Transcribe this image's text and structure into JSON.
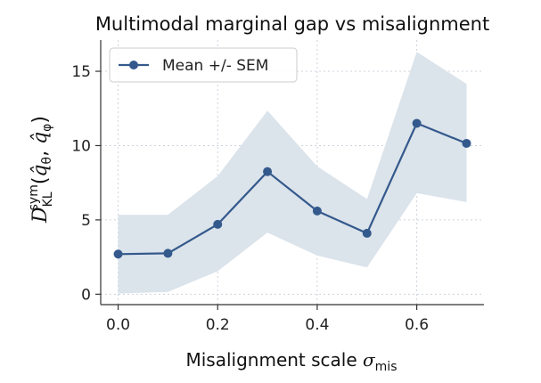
{
  "chart_data": {
    "type": "line",
    "title": "Multimodal marginal gap vs misalignment",
    "xlabel_text": "Misalignment scale ",
    "xlabel_symbol": "σ",
    "xlabel_subscript": "mis",
    "ylabel": "D_KL^sym(q̂_θ, q̂_φ)",
    "x": [
      0.0,
      0.1,
      0.2,
      0.3,
      0.4,
      0.5,
      0.6,
      0.7
    ],
    "series": [
      {
        "name": "Mean +/- SEM",
        "values": [
          2.7,
          2.75,
          4.7,
          8.25,
          5.6,
          4.1,
          11.5,
          10.15
        ],
        "lower": [
          0.05,
          0.15,
          1.55,
          4.15,
          2.6,
          1.8,
          6.8,
          6.2
        ],
        "upper": [
          5.35,
          5.35,
          7.95,
          12.35,
          8.6,
          6.4,
          16.3,
          14.15
        ],
        "color": "#34598c",
        "band_color": "#dbe3eb"
      }
    ],
    "xlim": [
      -0.035,
      0.735
    ],
    "ylim": [
      -0.7,
      17.1
    ],
    "xticks": [
      "0.0",
      "0.2",
      "0.4",
      "0.6"
    ],
    "yticks": [
      "0",
      "5",
      "10",
      "15"
    ],
    "grid": true,
    "legend_position": "top-left"
  }
}
